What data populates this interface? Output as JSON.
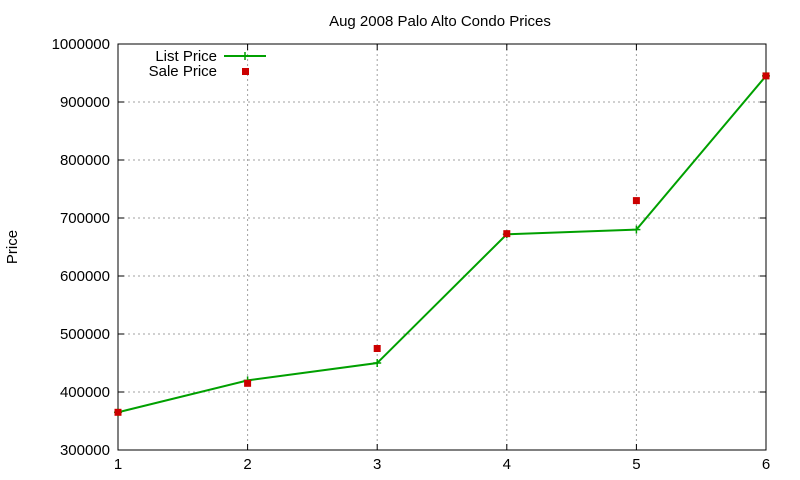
{
  "chart_data": {
    "type": "line",
    "title": "Aug 2008 Palo Alto Condo Prices",
    "xlabel": "",
    "ylabel": "Price",
    "x": [
      1,
      2,
      3,
      4,
      5,
      6
    ],
    "xlim": [
      1,
      6
    ],
    "ylim": [
      300000,
      1000000
    ],
    "xticks": [
      "1",
      "2",
      "3",
      "4",
      "5",
      "6"
    ],
    "yticks": [
      "300000",
      "400000",
      "500000",
      "600000",
      "700000",
      "800000",
      "900000",
      "1000000"
    ],
    "grid": true,
    "legend_position": "top-left",
    "series": [
      {
        "name": "List Price",
        "style": "line-with-plus-markers",
        "color": "#00a000",
        "values": [
          365000,
          420000,
          450000,
          672000,
          680000,
          945000
        ]
      },
      {
        "name": "Sale Price",
        "style": "square-markers",
        "color": "#cc0000",
        "values": [
          365000,
          415000,
          475000,
          673000,
          730000,
          945000
        ]
      }
    ]
  }
}
